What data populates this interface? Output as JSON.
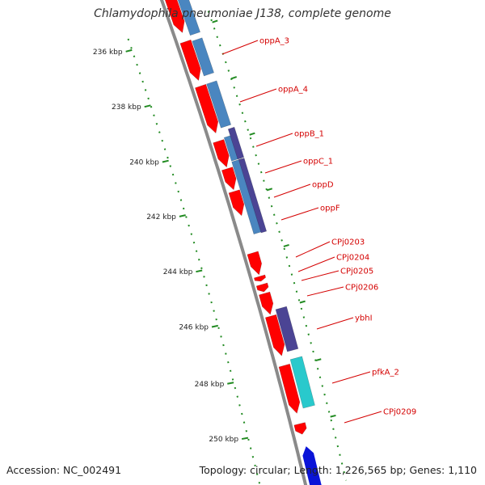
{
  "title": "Chlamydophila pneumoniae J138, complete genome",
  "accession": "Accession: NC_002491",
  "topology": "Topology: circular; Length: 1,226,565 bp; Genes: 1,110",
  "colors": {
    "backbone": "#8a8a8a",
    "forward_cds": "#ff0000",
    "reverse_cds": "#4a86c0",
    "cog_purple": "#4b4494",
    "cog_cyan": "#29c9cc",
    "cog_blue": "#0a14d8",
    "tick": "#228b22",
    "label": "#d40000"
  },
  "ticks": [
    {
      "label": "236 kbp"
    },
    {
      "label": "238 kbp"
    },
    {
      "label": "240 kbp"
    },
    {
      "label": "242 kbp"
    },
    {
      "label": "244 kbp"
    },
    {
      "label": "246 kbp"
    },
    {
      "label": "248 kbp"
    },
    {
      "label": "250 kbp"
    }
  ],
  "genes": [
    {
      "label": "oppA_3"
    },
    {
      "label": "oppA_4"
    },
    {
      "label": "oppB_1"
    },
    {
      "label": "oppC_1"
    },
    {
      "label": "oppD"
    },
    {
      "label": "oppF"
    },
    {
      "label": "CPj0203"
    },
    {
      "label": "CPj0204"
    },
    {
      "label": "CPj0205"
    },
    {
      "label": "CPj0206"
    },
    {
      "label": "ybhI"
    },
    {
      "label": "pfkA_2"
    },
    {
      "label": "CPj0209"
    }
  ]
}
